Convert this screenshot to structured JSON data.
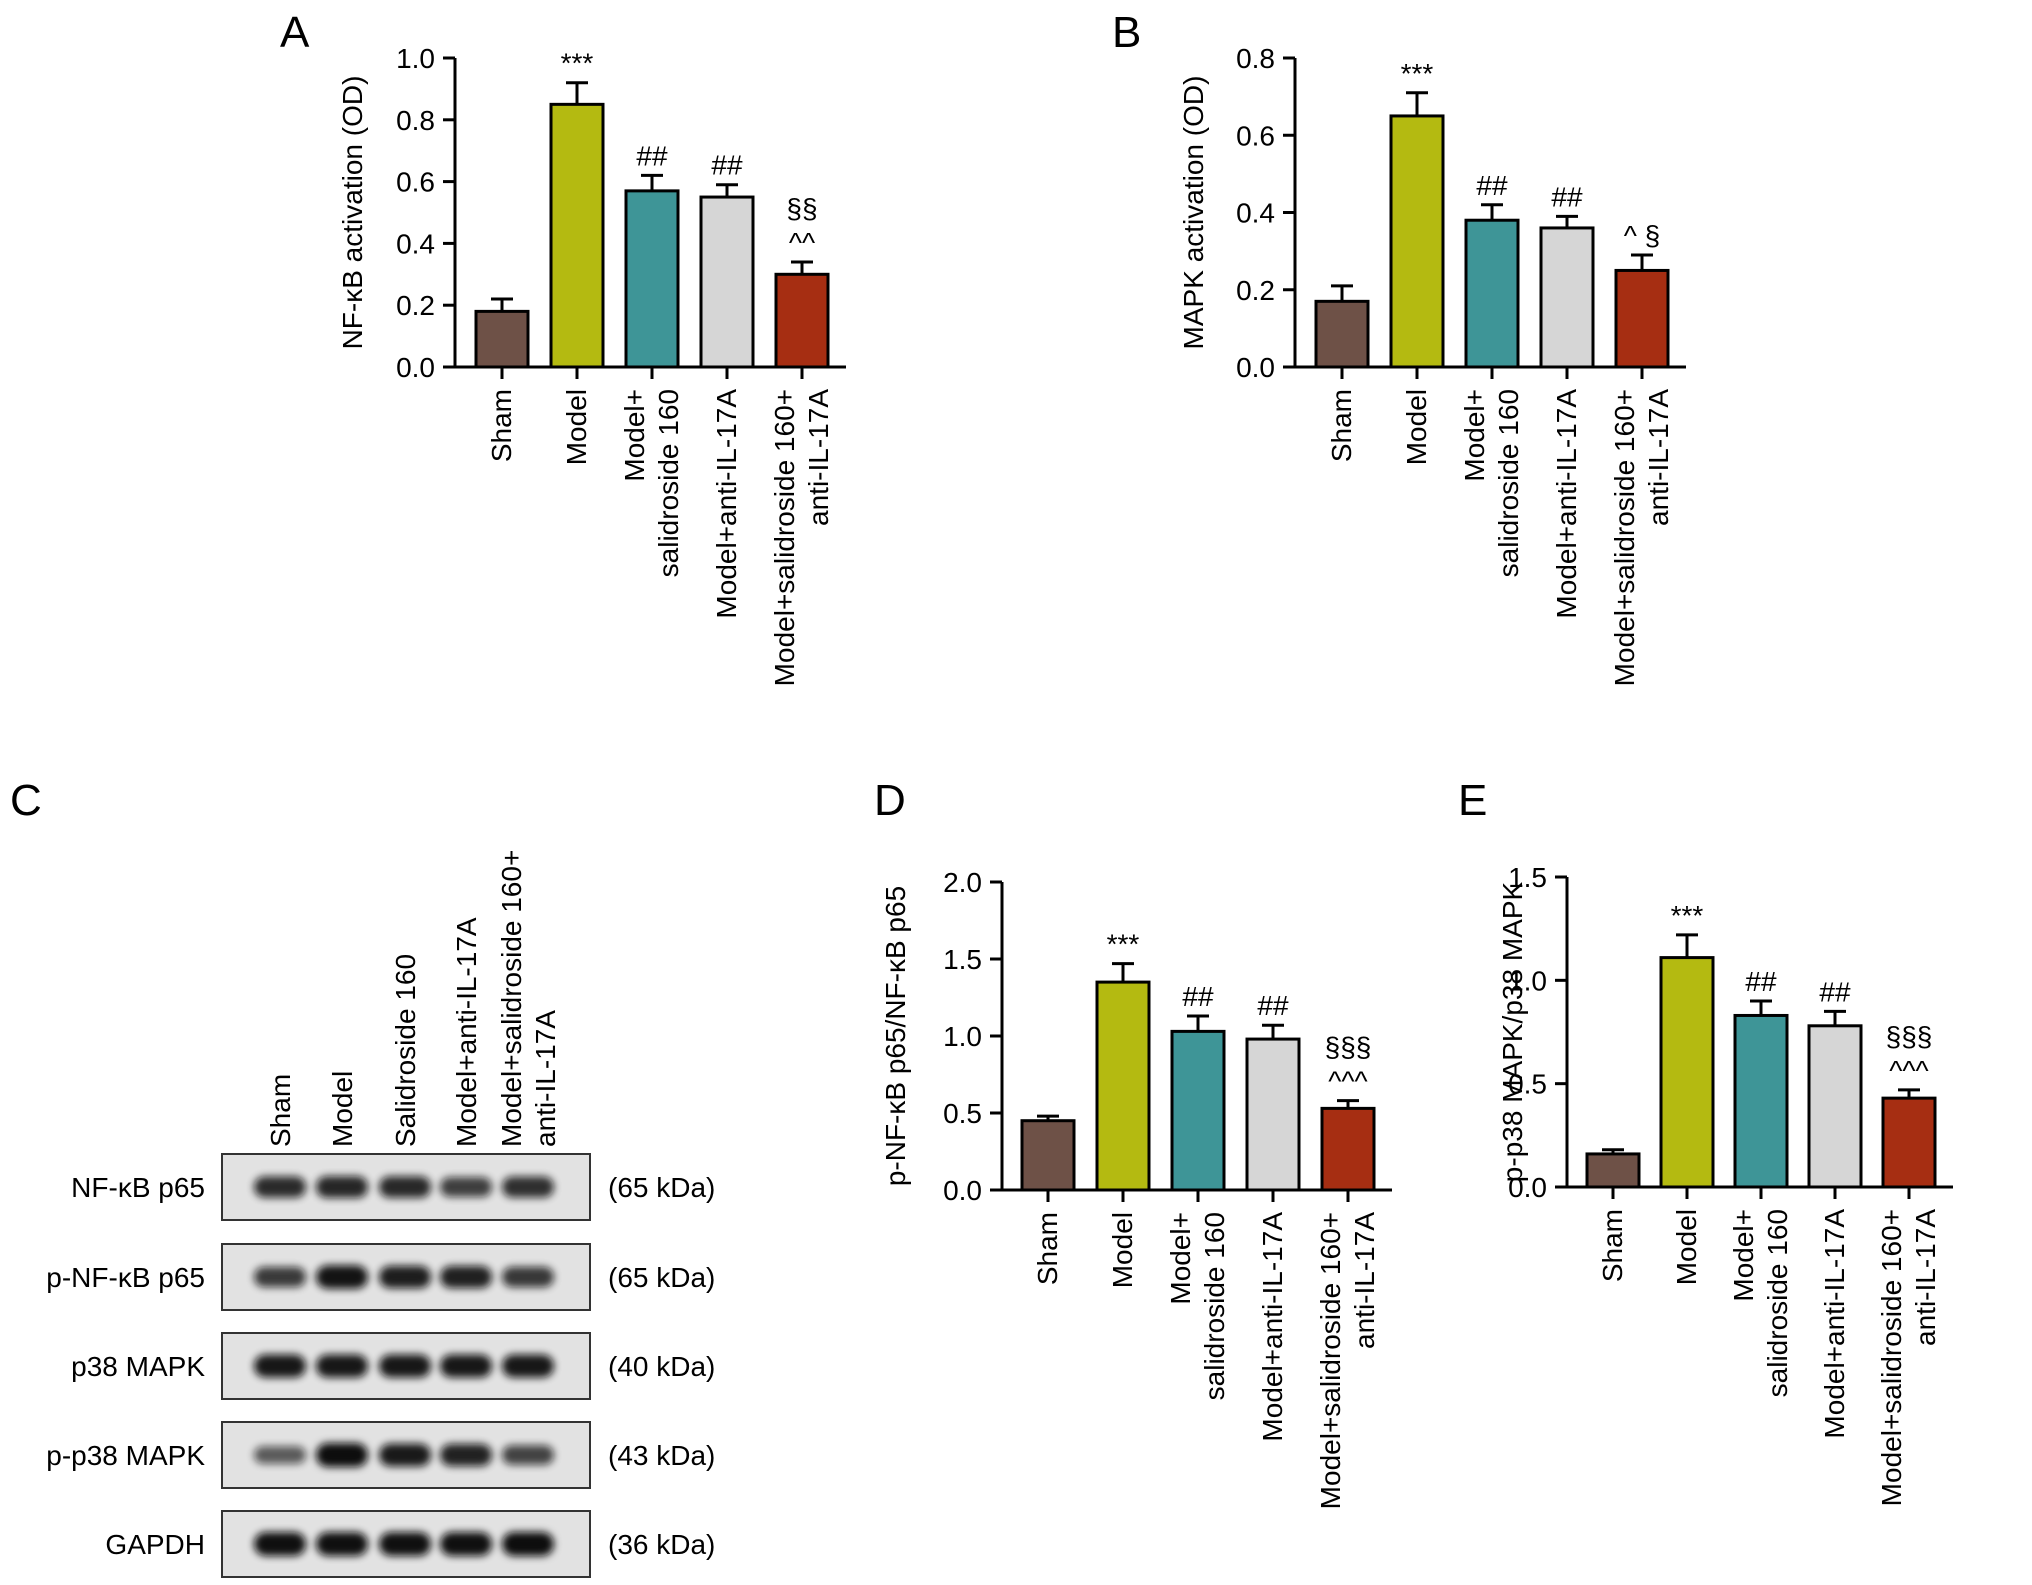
{
  "colors": {
    "sham": "#6e5147",
    "model": "#b4ba11",
    "salidroside": "#3e9597",
    "anti": "#d6d6d6",
    "combo": "#a62e12"
  },
  "chart_data": [
    {
      "panel": "A",
      "type": "bar",
      "ylabel": "NF-κB activation (OD)",
      "ylim": [
        0,
        1.0
      ],
      "yticks": [
        "0.0",
        "0.2",
        "0.4",
        "0.6",
        "0.8",
        "1.0"
      ],
      "categories": [
        [
          "Sham"
        ],
        [
          "Model"
        ],
        [
          "Model+",
          "salidroside 160"
        ],
        [
          "Model+anti-IL-17A"
        ],
        [
          "Model+salidroside 160+",
          "anti-IL-17A"
        ]
      ],
      "values": [
        0.18,
        0.85,
        0.57,
        0.55,
        0.3
      ],
      "errors": [
        0.04,
        0.07,
        0.05,
        0.04,
        0.04
      ],
      "annotations": [
        [],
        [
          "***"
        ],
        [
          "##"
        ],
        [
          "##"
        ],
        [
          "§§",
          "^^"
        ]
      ]
    },
    {
      "panel": "B",
      "type": "bar",
      "ylabel": "MAPK activation (OD)",
      "ylim": [
        0,
        0.8
      ],
      "yticks": [
        "0.0",
        "0.2",
        "0.4",
        "0.6",
        "0.8"
      ],
      "categories": [
        [
          "Sham"
        ],
        [
          "Model"
        ],
        [
          "Model+",
          "salidroside 160"
        ],
        [
          "Model+anti-IL-17A"
        ],
        [
          "Model+salidroside 160+",
          "anti-IL-17A"
        ]
      ],
      "values": [
        0.17,
        0.65,
        0.38,
        0.36,
        0.25
      ],
      "errors": [
        0.04,
        0.06,
        0.04,
        0.03,
        0.04
      ],
      "annotations": [
        [],
        [
          "***"
        ],
        [
          "##"
        ],
        [
          "##"
        ],
        [
          "^ §"
        ]
      ]
    },
    {
      "panel": "D",
      "type": "bar",
      "ylabel": "p-NF-κB p65/NF-κB p65",
      "ylim": [
        0,
        2.0
      ],
      "yticks": [
        "0.0",
        "0.5",
        "1.0",
        "1.5",
        "2.0"
      ],
      "categories": [
        [
          "Sham"
        ],
        [
          "Model"
        ],
        [
          "Model+",
          "salidroside 160"
        ],
        [
          "Model+anti-IL-17A"
        ],
        [
          "Model+salidroside 160+",
          "anti-IL-17A"
        ]
      ],
      "values": [
        0.45,
        1.35,
        1.03,
        0.98,
        0.53
      ],
      "errors": [
        0.03,
        0.12,
        0.1,
        0.09,
        0.05
      ],
      "annotations": [
        [],
        [
          "***"
        ],
        [
          "##"
        ],
        [
          "##"
        ],
        [
          "§§§",
          "^^^"
        ]
      ]
    },
    {
      "panel": "E",
      "type": "bar",
      "ylabel": "p-p38 MAPK/p38 MAPK",
      "ylim": [
        0,
        1.5
      ],
      "yticks": [
        "0.0",
        "0.5",
        "1.0",
        "1.5"
      ],
      "categories": [
        [
          "Sham"
        ],
        [
          "Model"
        ],
        [
          "Model+",
          "salidroside 160"
        ],
        [
          "Model+anti-IL-17A"
        ],
        [
          "Model+salidroside 160+",
          "anti-IL-17A"
        ]
      ],
      "values": [
        0.16,
        1.11,
        0.83,
        0.78,
        0.43
      ],
      "errors": [
        0.02,
        0.11,
        0.07,
        0.07,
        0.04
      ],
      "annotations": [
        [],
        [
          "***"
        ],
        [
          "##"
        ],
        [
          "##"
        ],
        [
          "§§§",
          "^^^"
        ]
      ]
    }
  ],
  "blot": {
    "panel": "C",
    "lanes": [
      [
        "Sham"
      ],
      [
        "Model"
      ],
      [
        "Salidroside 160"
      ],
      [
        "Model+anti-IL-17A"
      ],
      [
        "Model+salidroside 160+",
        "anti-IL-17A"
      ]
    ],
    "rows": [
      {
        "label": "NF-κB p65",
        "size": "(65 kDa)",
        "intensity": [
          0.78,
          0.82,
          0.8,
          0.65,
          0.76
        ]
      },
      {
        "label": "p-NF-κB p65",
        "size": "(65 kDa)",
        "intensity": [
          0.68,
          0.95,
          0.88,
          0.86,
          0.7
        ]
      },
      {
        "label": "p38 MAPK",
        "size": "(40 kDa)",
        "intensity": [
          0.92,
          0.92,
          0.92,
          0.92,
          0.92
        ]
      },
      {
        "label": "p-p38 MAPK",
        "size": "(43 kDa)",
        "intensity": [
          0.45,
          1.0,
          0.9,
          0.85,
          0.62
        ]
      },
      {
        "label": "GAPDH",
        "size": "(36 kDa)",
        "intensity": [
          0.98,
          0.98,
          0.98,
          0.98,
          1.0
        ]
      }
    ]
  }
}
